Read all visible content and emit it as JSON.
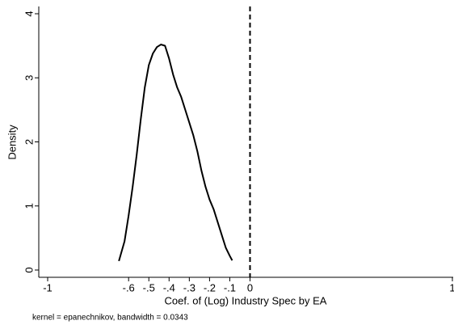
{
  "chart_data": {
    "type": "line",
    "x_label": "Coef. of (Log) Industry Spec by EA",
    "y_label": "Density",
    "note": "kernel = epanechnikov, bandwidth = 0.0343",
    "x": [
      -0.648,
      -0.62,
      -0.6,
      -0.58,
      -0.56,
      -0.54,
      -0.52,
      -0.5,
      -0.48,
      -0.46,
      -0.44,
      -0.42,
      -0.4,
      -0.38,
      -0.36,
      -0.34,
      -0.32,
      -0.3,
      -0.28,
      -0.26,
      -0.24,
      -0.22,
      -0.2,
      -0.18,
      -0.16,
      -0.14,
      -0.12,
      -0.1,
      -0.088
    ],
    "values": [
      0.14,
      0.45,
      0.85,
      1.3,
      1.8,
      2.35,
      2.85,
      3.2,
      3.38,
      3.48,
      3.52,
      3.5,
      3.3,
      3.05,
      2.85,
      2.7,
      2.5,
      2.3,
      2.1,
      1.85,
      1.55,
      1.3,
      1.1,
      0.95,
      0.75,
      0.55,
      0.35,
      0.22,
      0.15
    ],
    "color": "#000000",
    "xline": 0,
    "xlim": [
      -1,
      1
    ],
    "xticks": [
      -1,
      {
        "value": -0.6,
        "label": "-.6"
      },
      {
        "value": -0.5,
        "label": "-.5"
      },
      {
        "value": -0.4,
        "label": "-.4"
      },
      {
        "value": -0.3,
        "label": "-.3"
      },
      {
        "value": -0.2,
        "label": "-.2"
      },
      {
        "value": -0.1,
        "label": "-.1"
      },
      0,
      1
    ],
    "ylim": [
      0,
      4
    ],
    "yticks": [
      0,
      1,
      2,
      3,
      4
    ]
  }
}
